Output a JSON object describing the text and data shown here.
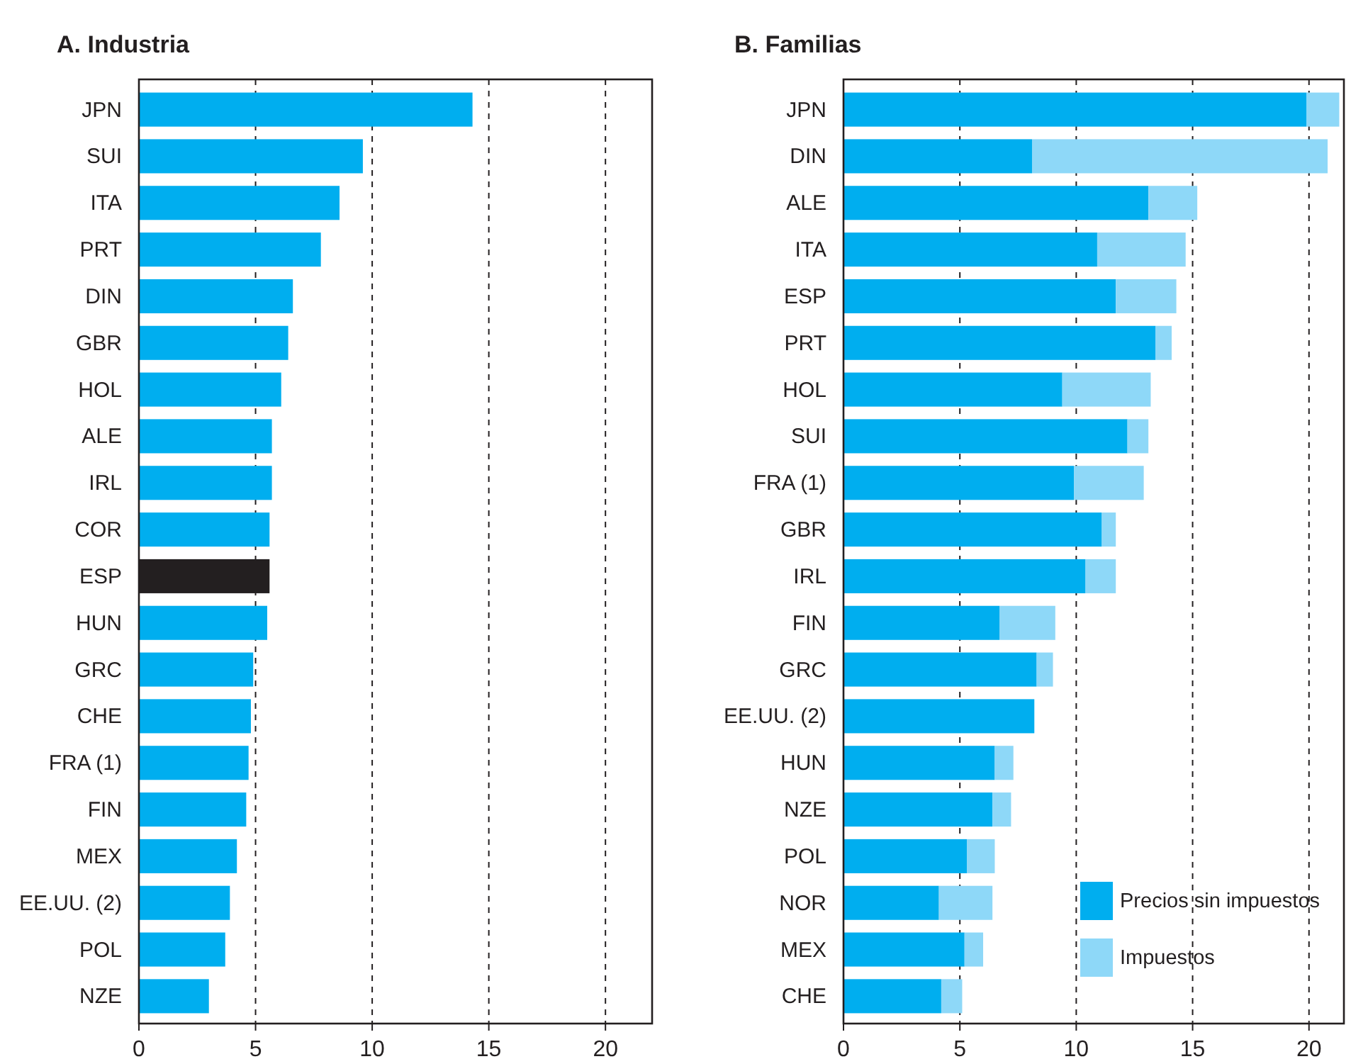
{
  "chart_data": [
    {
      "type": "bar",
      "orientation": "horizontal",
      "title": "A. Industria",
      "categories": [
        "JPN",
        "SUI",
        "ITA",
        "PRT",
        "DIN",
        "GBR",
        "HOL",
        "ALE",
        "IRL",
        "COR",
        "ESP",
        "HUN",
        "GRC",
        "CHE",
        "FRA (1)",
        "FIN",
        "MEX",
        "EE.UU. (2)",
        "POL",
        "NZE"
      ],
      "values": [
        14.3,
        9.6,
        8.6,
        7.8,
        6.6,
        6.4,
        6.1,
        5.7,
        5.7,
        5.6,
        5.6,
        5.5,
        4.9,
        4.8,
        4.7,
        4.6,
        4.2,
        3.9,
        3.7,
        3.0
      ],
      "colors": [
        "#00aeef",
        "#00aeef",
        "#00aeef",
        "#00aeef",
        "#00aeef",
        "#00aeef",
        "#00aeef",
        "#00aeef",
        "#00aeef",
        "#00aeef",
        "#231f20",
        "#00aeef",
        "#00aeef",
        "#00aeef",
        "#00aeef",
        "#00aeef",
        "#00aeef",
        "#00aeef",
        "#00aeef",
        "#00aeef"
      ],
      "xlim": [
        0,
        22
      ],
      "xticks": [
        0,
        5,
        10,
        15,
        20
      ],
      "grid": "x"
    },
    {
      "type": "bar",
      "orientation": "horizontal",
      "stacked": true,
      "title": "B. Familias",
      "categories": [
        "JPN",
        "DIN",
        "ALE",
        "ITA",
        "ESP",
        "PRT",
        "HOL",
        "SUI",
        "FRA (1)",
        "GBR",
        "IRL",
        "FIN",
        "GRC",
        "EE.UU. (2)",
        "HUN",
        "NZE",
        "POL",
        "NOR",
        "MEX",
        "CHE"
      ],
      "series": [
        {
          "name": "Precios sin impuestos",
          "color": "#00aeef",
          "values": [
            19.9,
            8.1,
            13.1,
            10.9,
            11.7,
            13.4,
            9.4,
            12.2,
            9.9,
            11.1,
            10.4,
            6.7,
            8.3,
            8.2,
            6.5,
            6.4,
            5.3,
            4.1,
            5.2,
            4.2
          ]
        },
        {
          "name": "Impuestos",
          "color": "#8ed8f8",
          "values": [
            1.4,
            12.7,
            2.1,
            3.8,
            2.6,
            0.7,
            3.8,
            0.9,
            3.0,
            0.6,
            1.3,
            2.4,
            0.7,
            0,
            0.8,
            0.8,
            1.2,
            2.3,
            0.8,
            0.9
          ]
        }
      ],
      "xlim": [
        0,
        21.5
      ],
      "xticks": [
        0,
        5,
        10,
        15,
        20
      ],
      "grid": "x",
      "legend": "bottom right"
    }
  ]
}
